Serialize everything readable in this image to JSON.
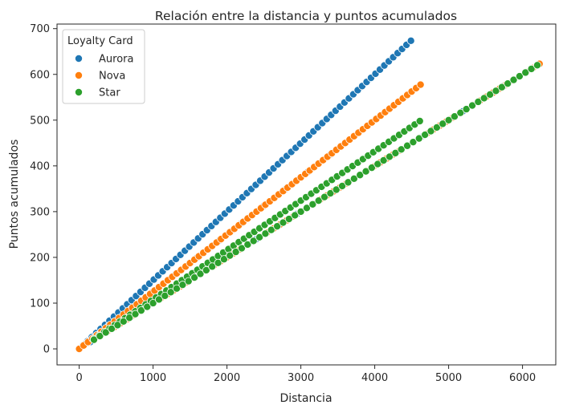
{
  "chart_data": {
    "type": "scatter",
    "title": "Relación entre la distancia y puntos acumulados",
    "xlabel": "Distancia",
    "ylabel": "Puntos acumulados",
    "xlim": [
      -300,
      6450
    ],
    "ylim": [
      -35,
      710
    ],
    "xticks": [
      0,
      1000,
      2000,
      3000,
      4000,
      5000,
      6000
    ],
    "yticks": [
      0,
      100,
      200,
      300,
      400,
      500,
      600,
      700
    ],
    "grid": false,
    "legend": {
      "title": "Loyalty Card",
      "placement": "top-left"
    },
    "series": [
      {
        "name": "Aurora",
        "color": "#1f77b4",
        "lines": [
          {
            "slope": 0.15,
            "x_start": 50,
            "x_end": 4520,
            "step": 60
          },
          {
            "slope": 0.125,
            "x_start": 100,
            "x_end": 3500,
            "step": 300
          },
          {
            "slope": 0.1,
            "x_start": 150,
            "x_end": 6000,
            "step": 280
          }
        ]
      },
      {
        "name": "Nova",
        "color": "#ff7f0e",
        "lines": [
          {
            "slope": 0.125,
            "x_start": 0,
            "x_end": 4620,
            "step": 60
          },
          {
            "slope": 0.1,
            "x_start": 200,
            "x_end": 6270,
            "step": 90
          }
        ]
      },
      {
        "name": "Star",
        "color": "#2ca02c",
        "lines": [
          {
            "slope": 0.108,
            "x_start": 200,
            "x_end": 4650,
            "step": 70
          },
          {
            "slope": 0.1,
            "x_start": 200,
            "x_end": 6250,
            "step": 80
          }
        ]
      }
    ]
  }
}
